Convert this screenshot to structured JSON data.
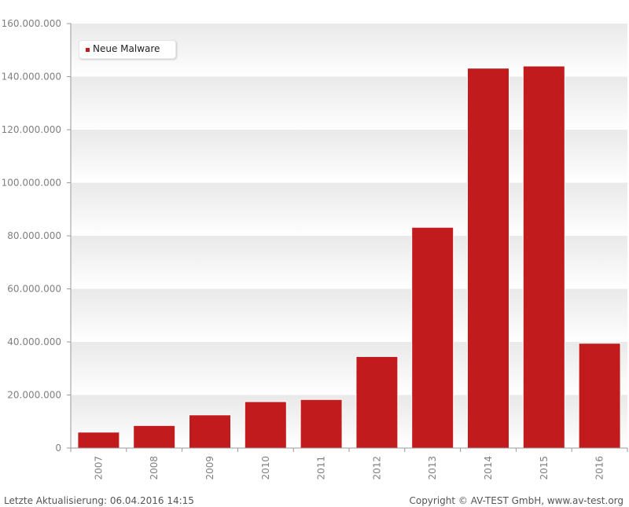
{
  "chart_data": {
    "type": "bar",
    "categories": [
      "2007",
      "2008",
      "2009",
      "2010",
      "2011",
      "2012",
      "2013",
      "2014",
      "2015",
      "2016"
    ],
    "series": [
      {
        "name": "Neue Malware",
        "values": [
          6000000,
          8500000,
          12500000,
          17500000,
          18300000,
          34500000,
          83200000,
          143200000,
          144000000,
          39500000
        ]
      }
    ],
    "ylim": [
      0,
      160000000
    ],
    "yticks": [
      "0",
      "20.000.000",
      "40.000.000",
      "60.000.000",
      "80.000.000",
      "100.000.000",
      "120.000.000",
      "140.000.000",
      "160.000.000"
    ],
    "ytick_values": [
      0,
      20000000,
      40000000,
      60000000,
      80000000,
      100000000,
      120000000,
      140000000,
      160000000
    ],
    "legend_position": "top-left",
    "grid": true,
    "bar_color": "#c21b1e"
  },
  "footer": {
    "left": "Letzte Aktualisierung: 06.04.2016 14:15",
    "right": "Copyright © AV-TEST GmbH, www.av-test.org"
  }
}
